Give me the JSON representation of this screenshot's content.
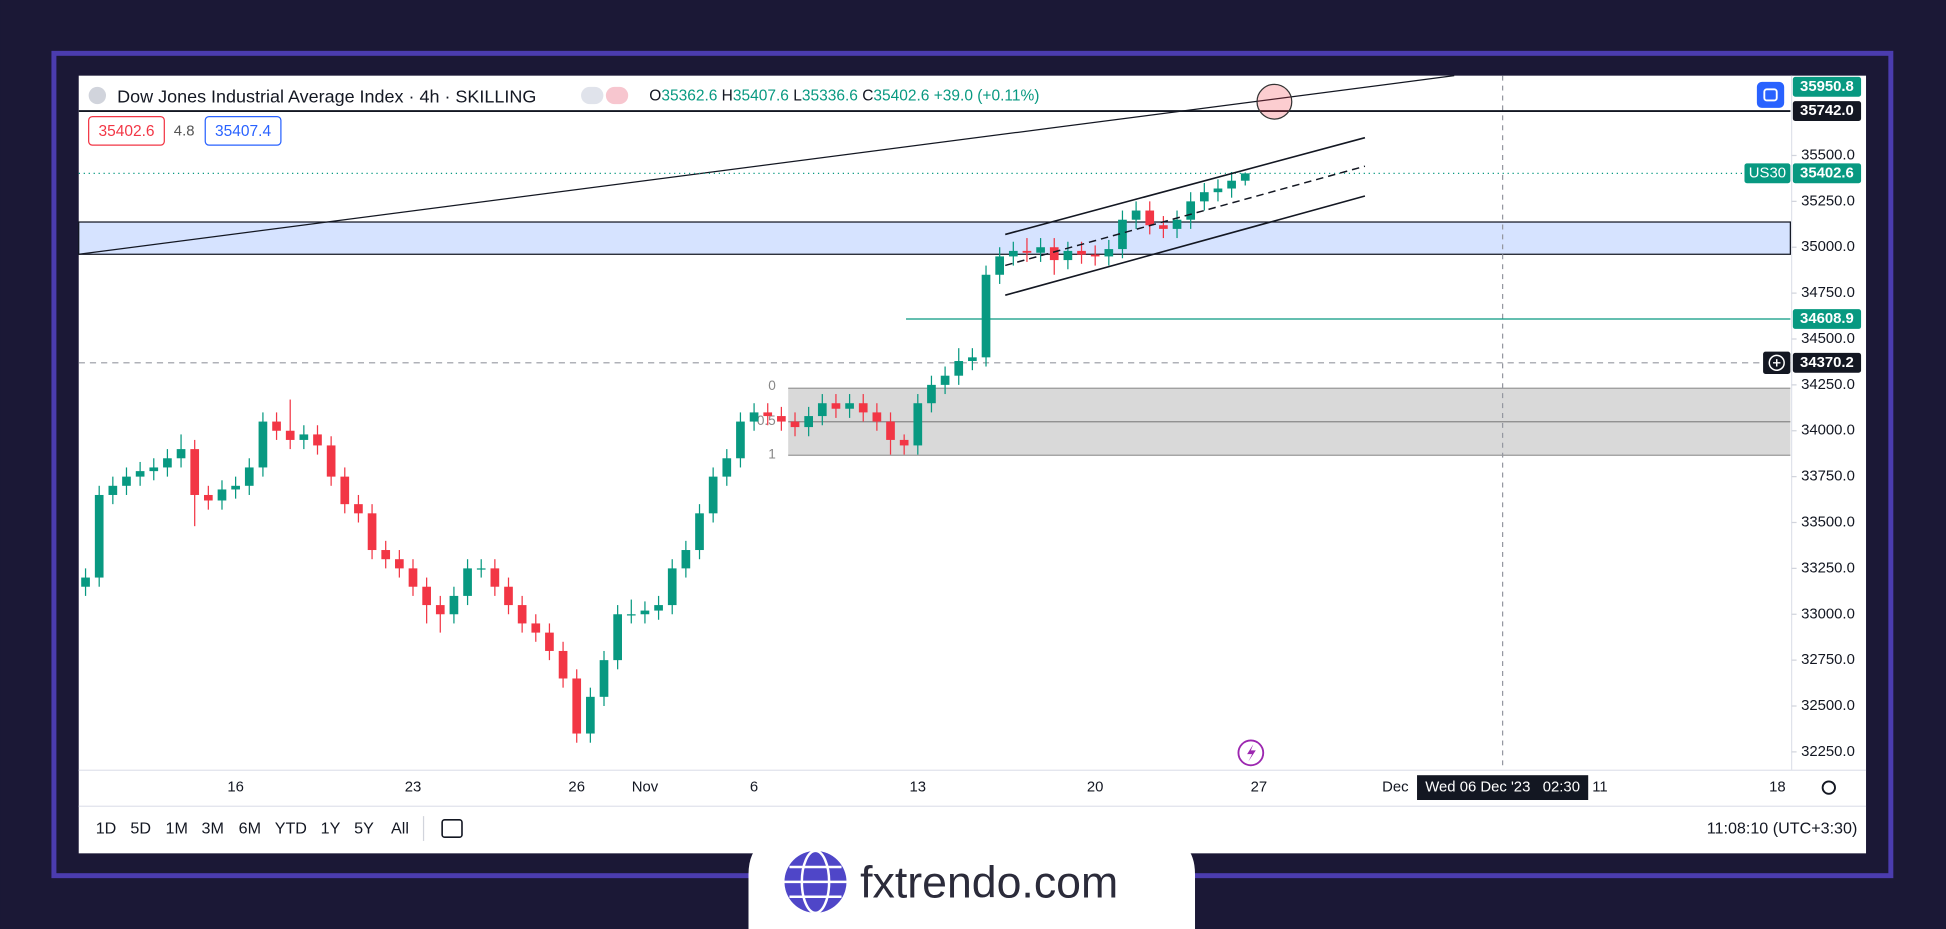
{
  "header": {
    "title": "Dow Jones Industrial Average Index · 4h · SKILLING",
    "ohlc_letters": [
      "O",
      "H",
      "L",
      "C"
    ],
    "change": "+39.0 (+0.11%)",
    "bid": "35402.6",
    "spread": "4.8",
    "ask": "35407.4"
  },
  "chart_data": {
    "type": "candlestick",
    "title": "Dow Jones Industrial Average Index · 4h · SKILLING",
    "up_color": "#089981",
    "down_color": "#f23645",
    "categories": [
      null,
      null,
      null,
      null,
      null,
      null,
      null,
      null,
      null,
      null,
      null,
      "16",
      null,
      null,
      null,
      null,
      null,
      null,
      null,
      null,
      null,
      null,
      null,
      null,
      "23",
      null,
      null,
      null,
      null,
      null,
      null,
      null,
      null,
      null,
      null,
      null,
      "26",
      null,
      null,
      null,
      null,
      "Nov",
      null,
      null,
      null,
      null,
      null,
      null,
      null,
      "6",
      null,
      null,
      null,
      null,
      null,
      null,
      null,
      null,
      null,
      null,
      null,
      "13",
      null,
      null,
      null,
      null,
      null,
      null,
      null,
      null,
      null,
      null,
      null,
      null,
      "20",
      null,
      null,
      null,
      null,
      null,
      null,
      null,
      null,
      null,
      null,
      null,
      "27",
      null,
      null,
      null,
      null,
      null,
      null,
      null,
      null,
      null,
      "Dec",
      null,
      null,
      null,
      null,
      null,
      null,
      null,
      null,
      null,
      null,
      null,
      null,
      null,
      null,
      "11",
      null,
      null,
      null,
      null,
      null,
      null,
      null,
      null,
      null,
      null,
      null,
      null,
      "18"
    ],
    "open": [
      33150,
      33200,
      33650,
      33700,
      33750,
      33780,
      33800,
      33850,
      33900,
      33650,
      33620,
      33680,
      33700,
      33800,
      34050,
      34000,
      33950,
      33980,
      33920,
      33750,
      33600,
      33550,
      33350,
      33300,
      33250,
      33150,
      33050,
      33000,
      33100,
      33250,
      33250,
      33150,
      33050,
      32950,
      32900,
      32800,
      32650,
      32350,
      32550,
      32750,
      33000,
      33000,
      33020,
      33050,
      33250,
      33350,
      33550,
      33750,
      33850,
      34050,
      34100,
      34080,
      34050,
      34020,
      34080,
      34150,
      34120,
      34150,
      34100,
      34050,
      33950,
      33920,
      34150,
      34250,
      34300,
      34380,
      34400,
      34850,
      34950,
      34980,
      34970,
      35000,
      34930,
      34980,
      34960,
      34950,
      34990,
      35150,
      35200,
      35120,
      35100,
      35150,
      35250,
      35300,
      35320,
      35362.6,
      null,
      null,
      null,
      null,
      null,
      null,
      null,
      null,
      null,
      null,
      null,
      null,
      null,
      null,
      null,
      null,
      null,
      null,
      null,
      null,
      null,
      null,
      null,
      null,
      null,
      null,
      null,
      null,
      null,
      null,
      null,
      null,
      null,
      null,
      null,
      null,
      null,
      null,
      null
    ],
    "high": [
      33250,
      33700,
      33750,
      33800,
      33830,
      33850,
      33900,
      33980,
      33950,
      33700,
      33730,
      33750,
      33850,
      34100,
      34100,
      34170,
      34030,
      34030,
      33970,
      33800,
      33650,
      33600,
      33400,
      33350,
      33300,
      33200,
      33100,
      33150,
      33300,
      33300,
      33300,
      33200,
      33100,
      33000,
      32950,
      32850,
      32700,
      32600,
      32800,
      33050,
      33080,
      33070,
      33100,
      33300,
      33400,
      33600,
      33800,
      33900,
      34100,
      34150,
      34150,
      34130,
      34100,
      34130,
      34200,
      34200,
      34200,
      34200,
      34150,
      34100,
      33980,
      34200,
      34300,
      34350,
      34450,
      34450,
      34900,
      35000,
      35030,
      35050,
      35050,
      35050,
      35030,
      35030,
      35010,
      35040,
      35200,
      35250,
      35250,
      35170,
      35200,
      35300,
      35350,
      35370,
      35410,
      35407.6,
      null,
      null,
      null,
      null,
      null,
      null,
      null,
      null,
      null,
      null,
      null,
      null,
      null,
      null,
      null,
      null,
      null,
      null,
      null,
      null,
      null,
      null,
      null,
      null,
      null,
      null,
      null,
      null,
      null,
      null,
      null,
      null,
      null,
      null,
      null,
      null,
      null,
      null,
      null
    ],
    "low": [
      33100,
      33150,
      33600,
      33650,
      33700,
      33730,
      33750,
      33800,
      33480,
      33570,
      33570,
      33630,
      33650,
      33750,
      33950,
      33900,
      33900,
      33870,
      33700,
      33550,
      33500,
      33300,
      33250,
      33200,
      33100,
      32950,
      32900,
      32950,
      33050,
      33200,
      33100,
      33000,
      32900,
      32850,
      32750,
      32600,
      32300,
      32300,
      32500,
      32700,
      32950,
      32950,
      32970,
      33000,
      33200,
      33300,
      33500,
      33700,
      33800,
      34000,
      34030,
      34000,
      33970,
      33970,
      34030,
      34070,
      34070,
      34050,
      34000,
      33870,
      33870,
      33870,
      34100,
      34200,
      34250,
      34330,
      34350,
      34800,
      34900,
      34920,
      34920,
      34850,
      34880,
      34910,
      34900,
      34900,
      34940,
      35100,
      35070,
      35050,
      35050,
      35100,
      35200,
      35250,
      35270,
      35336.6,
      null,
      null,
      null,
      null,
      null,
      null,
      null,
      null,
      null,
      null,
      null,
      null,
      null,
      null,
      null,
      null,
      null,
      null,
      null,
      null,
      null,
      null,
      null,
      null,
      null,
      null,
      null,
      null,
      null,
      null,
      null,
      null,
      null,
      null,
      null,
      null,
      null,
      null,
      null
    ],
    "close": [
      33200,
      33650,
      33700,
      33750,
      33780,
      33800,
      33850,
      33900,
      33650,
      33620,
      33680,
      33700,
      33800,
      34050,
      34000,
      33950,
      33980,
      33920,
      33750,
      33600,
      33550,
      33350,
      33300,
      33250,
      33150,
      33050,
      33000,
      33100,
      33250,
      33250,
      33150,
      33050,
      32950,
      32900,
      32800,
      32650,
      32350,
      32550,
      32750,
      33000,
      33000,
      33020,
      33050,
      33250,
      33350,
      33550,
      33750,
      33850,
      34050,
      34100,
      34080,
      34050,
      34020,
      34080,
      34150,
      34120,
      34150,
      34100,
      34050,
      33950,
      33920,
      34150,
      34250,
      34300,
      34380,
      34400,
      34850,
      34950,
      34980,
      34970,
      35000,
      34930,
      34980,
      34960,
      34950,
      34990,
      35150,
      35200,
      35120,
      35100,
      35150,
      35250,
      35300,
      35320,
      35362.6,
      35402.6,
      null,
      null,
      null,
      null,
      null,
      null,
      null,
      null,
      null,
      null,
      null,
      null,
      null,
      null,
      null,
      null,
      null,
      null,
      null,
      null,
      null,
      null,
      null,
      null,
      null,
      null,
      null,
      null,
      null,
      null,
      null,
      null,
      null,
      null,
      null,
      null,
      null,
      null,
      null
    ],
    "ylim": [
      32150,
      35935
    ],
    "yticks": [
      {
        "value": 32250,
        "label": "32250.0"
      },
      {
        "value": 32500,
        "label": "32500.0"
      },
      {
        "value": 32750,
        "label": "32750.0"
      },
      {
        "value": 33000,
        "label": "33000.0"
      },
      {
        "value": 33250,
        "label": "33250.0"
      },
      {
        "value": 33500,
        "label": "33500.0"
      },
      {
        "value": 33750,
        "label": "33750.0"
      },
      {
        "value": 34000,
        "label": "34000.0"
      },
      {
        "value": 34250,
        "label": "34250.0"
      },
      {
        "value": 34500,
        "label": "34500.0"
      },
      {
        "value": 34750,
        "label": "34750.0"
      },
      {
        "value": 35000,
        "label": "35000.0"
      },
      {
        "value": 35250,
        "label": "35250.0"
      },
      {
        "value": 35500,
        "label": "35500.0"
      }
    ],
    "grid": false,
    "price_tags": [
      {
        "value": 35950.8,
        "label": "35950.8",
        "color": "#089981"
      },
      {
        "value": 35742,
        "label": "35742.0",
        "color": "#131722"
      },
      {
        "name": "US30",
        "value": 35402.6,
        "label": "35402.6",
        "color": "#089981"
      },
      {
        "value": 34608.9,
        "label": "34608.9",
        "color": "#089981"
      },
      {
        "value": 34370.2,
        "label": "34370.2",
        "color": "#131722"
      }
    ]
  },
  "fib_labels": [
    "0",
    "0.5",
    "1"
  ],
  "crosshair_label": "Wed 06 Dec '23   02:30",
  "timeframes": [
    "1D",
    "5D",
    "1M",
    "3M",
    "6M",
    "YTD",
    "1Y",
    "5Y",
    "All"
  ],
  "clock": "11:08:10 (UTC+3:30)",
  "brand": "fxtrendo.com"
}
